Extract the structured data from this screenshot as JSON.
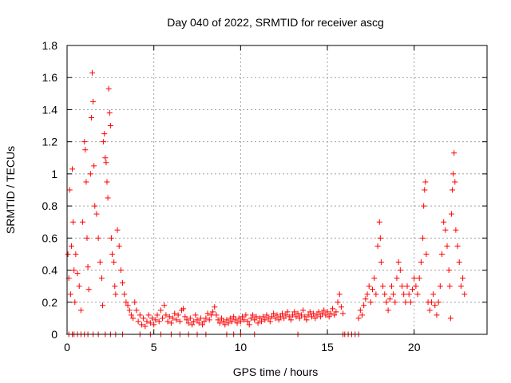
{
  "chart_data": {
    "type": "scatter",
    "title": "Day 040 of 2022, SRMTID for receiver ascg",
    "xlabel": "GPS time / hours",
    "ylabel": "SRMTID / TECUs",
    "xlim": [
      0,
      24.2
    ],
    "ylim": [
      0,
      1.8
    ],
    "xticks": [
      0,
      5,
      10,
      15,
      20
    ],
    "xtick_labels": [
      "0",
      "5",
      "10",
      "15",
      "20"
    ],
    "yticks": [
      0,
      0.2,
      0.4,
      0.6,
      0.8,
      1,
      1.2,
      1.4,
      1.6,
      1.8
    ],
    "ytick_labels": [
      "0",
      "0.2",
      "0.4",
      "0.6",
      "0.8",
      "1",
      "1.2",
      "1.4",
      "1.6",
      "1.8"
    ],
    "grid": true,
    "marker": "plus",
    "color": "#ff0000",
    "series": [
      {
        "name": "SRMTID",
        "points": [
          [
            0.05,
            0.5
          ],
          [
            0.1,
            0.35
          ],
          [
            0.15,
            0.9
          ],
          [
            0.2,
            0.25
          ],
          [
            0.25,
            0.55
          ],
          [
            0.3,
            1.03
          ],
          [
            0.35,
            0.7
          ],
          [
            0.4,
            0.4
          ],
          [
            0.45,
            0.2
          ],
          [
            0.5,
            0.5
          ],
          [
            0.6,
            0.38
          ],
          [
            0.7,
            0.3
          ],
          [
            0.8,
            0.15
          ],
          [
            0.9,
            0.7
          ],
          [
            1.0,
            1.2
          ],
          [
            1.05,
            1.15
          ],
          [
            1.1,
            0.95
          ],
          [
            1.15,
            0.6
          ],
          [
            1.2,
            0.42
          ],
          [
            1.25,
            0.28
          ],
          [
            1.35,
            1.0
          ],
          [
            1.4,
            1.35
          ],
          [
            1.45,
            1.63
          ],
          [
            1.5,
            1.45
          ],
          [
            1.55,
            1.05
          ],
          [
            1.6,
            0.8
          ],
          [
            1.7,
            0.75
          ],
          [
            1.8,
            0.6
          ],
          [
            1.9,
            0.45
          ],
          [
            2.0,
            0.35
          ],
          [
            2.05,
            0.18
          ],
          [
            2.1,
            1.2
          ],
          [
            2.15,
            1.25
          ],
          [
            2.2,
            1.1
          ],
          [
            2.25,
            1.07
          ],
          [
            2.3,
            0.95
          ],
          [
            2.35,
            0.85
          ],
          [
            2.4,
            1.53
          ],
          [
            2.45,
            1.38
          ],
          [
            2.5,
            1.3
          ],
          [
            2.55,
            0.6
          ],
          [
            2.6,
            0.5
          ],
          [
            2.7,
            0.45
          ],
          [
            2.75,
            0.3
          ],
          [
            2.8,
            0.25
          ],
          [
            2.9,
            0.65
          ],
          [
            3.0,
            0.55
          ],
          [
            3.1,
            0.4
          ],
          [
            3.2,
            0.32
          ],
          [
            3.3,
            0.25
          ],
          [
            3.4,
            0.2
          ],
          [
            3.5,
            0.18
          ],
          [
            3.6,
            0.15
          ],
          [
            3.7,
            0.12
          ],
          [
            3.8,
            0.1
          ],
          [
            3.9,
            0.2
          ],
          [
            4.0,
            0.15
          ],
          [
            4.1,
            0.08
          ],
          [
            4.2,
            0.12
          ],
          [
            4.3,
            0.06
          ],
          [
            4.4,
            0.1
          ],
          [
            4.5,
            0.05
          ],
          [
            4.6,
            0.08
          ],
          [
            4.7,
            0.12
          ],
          [
            4.8,
            0.07
          ],
          [
            4.9,
            0.1
          ],
          [
            5.0,
            0.06
          ],
          [
            5.1,
            0.09
          ],
          [
            5.2,
            0.12
          ],
          [
            5.3,
            0.08
          ],
          [
            5.4,
            0.15
          ],
          [
            5.5,
            0.1
          ],
          [
            5.6,
            0.18
          ],
          [
            5.7,
            0.12
          ],
          [
            5.8,
            0.08
          ],
          [
            5.9,
            0.11
          ],
          [
            6.0,
            0.07
          ],
          [
            6.1,
            0.1
          ],
          [
            6.2,
            0.13
          ],
          [
            6.3,
            0.09
          ],
          [
            6.4,
            0.12
          ],
          [
            6.5,
            0.08
          ],
          [
            6.6,
            0.15
          ],
          [
            6.7,
            0.16
          ],
          [
            6.8,
            0.11
          ],
          [
            6.9,
            0.09
          ],
          [
            7.0,
            0.07
          ],
          [
            7.1,
            0.1
          ],
          [
            7.2,
            0.06
          ],
          [
            7.3,
            0.08
          ],
          [
            7.4,
            0.12
          ],
          [
            7.5,
            0.09
          ],
          [
            7.6,
            0.07
          ],
          [
            7.7,
            0.1
          ],
          [
            7.8,
            0.06
          ],
          [
            7.9,
            0.08
          ],
          [
            8.0,
            0.1
          ],
          [
            8.1,
            0.13
          ],
          [
            8.2,
            0.09
          ],
          [
            8.3,
            0.12
          ],
          [
            8.4,
            0.14
          ],
          [
            8.5,
            0.17
          ],
          [
            8.6,
            0.12
          ],
          [
            8.7,
            0.09
          ],
          [
            8.8,
            0.07
          ],
          [
            8.9,
            0.1
          ],
          [
            9.0,
            0.08
          ],
          [
            9.1,
            0.06
          ],
          [
            9.2,
            0.09
          ],
          [
            9.3,
            0.07
          ],
          [
            9.4,
            0.1
          ],
          [
            9.5,
            0.08
          ],
          [
            9.6,
            0.11
          ],
          [
            9.7,
            0.09
          ],
          [
            9.8,
            0.07
          ],
          [
            9.9,
            0.1
          ],
          [
            10.0,
            0.08
          ],
          [
            10.1,
            0.11
          ],
          [
            10.2,
            0.09
          ],
          [
            10.3,
            0.12
          ],
          [
            10.4,
            0.08
          ],
          [
            10.5,
            0.06
          ],
          [
            10.6,
            0.1
          ],
          [
            10.7,
            0.12
          ],
          [
            10.8,
            0.09
          ],
          [
            10.9,
            0.11
          ],
          [
            11.0,
            0.07
          ],
          [
            11.1,
            0.1
          ],
          [
            11.2,
            0.08
          ],
          [
            11.3,
            0.11
          ],
          [
            11.4,
            0.09
          ],
          [
            11.5,
            0.12
          ],
          [
            11.6,
            0.1
          ],
          [
            11.7,
            0.08
          ],
          [
            11.8,
            0.11
          ],
          [
            11.9,
            0.13
          ],
          [
            12.0,
            0.1
          ],
          [
            12.1,
            0.12
          ],
          [
            12.2,
            0.09
          ],
          [
            12.3,
            0.11
          ],
          [
            12.4,
            0.13
          ],
          [
            12.5,
            0.1
          ],
          [
            12.6,
            0.12
          ],
          [
            12.7,
            0.14
          ],
          [
            12.8,
            0.11
          ],
          [
            12.9,
            0.09
          ],
          [
            13.0,
            0.12
          ],
          [
            13.1,
            0.14
          ],
          [
            13.2,
            0.11
          ],
          [
            13.3,
            0.13
          ],
          [
            13.4,
            0.1
          ],
          [
            13.5,
            0.12
          ],
          [
            13.6,
            0.15
          ],
          [
            13.7,
            0.11
          ],
          [
            13.8,
            0.09
          ],
          [
            13.9,
            0.12
          ],
          [
            14.0,
            0.14
          ],
          [
            14.1,
            0.11
          ],
          [
            14.2,
            0.13
          ],
          [
            14.3,
            0.1
          ],
          [
            14.4,
            0.12
          ],
          [
            14.5,
            0.14
          ],
          [
            14.6,
            0.11
          ],
          [
            14.7,
            0.13
          ],
          [
            14.8,
            0.15
          ],
          [
            14.9,
            0.12
          ],
          [
            15.0,
            0.14
          ],
          [
            15.1,
            0.11
          ],
          [
            15.2,
            0.13
          ],
          [
            15.3,
            0.16
          ],
          [
            15.4,
            0.12
          ],
          [
            15.5,
            0.14
          ],
          [
            15.6,
            0.2
          ],
          [
            15.7,
            0.25
          ],
          [
            15.8,
            0.17
          ],
          [
            15.9,
            0.13
          ],
          [
            16.8,
            0.1
          ],
          [
            16.9,
            0.15
          ],
          [
            17.0,
            0.12
          ],
          [
            17.1,
            0.18
          ],
          [
            17.2,
            0.22
          ],
          [
            17.3,
            0.25
          ],
          [
            17.4,
            0.3
          ],
          [
            17.5,
            0.2
          ],
          [
            17.6,
            0.28
          ],
          [
            17.7,
            0.35
          ],
          [
            17.8,
            0.25
          ],
          [
            17.9,
            0.55
          ],
          [
            18.0,
            0.7
          ],
          [
            18.05,
            0.6
          ],
          [
            18.1,
            0.45
          ],
          [
            18.2,
            0.3
          ],
          [
            18.3,
            0.25
          ],
          [
            18.4,
            0.2
          ],
          [
            18.5,
            0.15
          ],
          [
            18.6,
            0.22
          ],
          [
            18.7,
            0.3
          ],
          [
            18.8,
            0.25
          ],
          [
            18.9,
            0.2
          ],
          [
            19.0,
            0.35
          ],
          [
            19.1,
            0.45
          ],
          [
            19.2,
            0.4
          ],
          [
            19.3,
            0.3
          ],
          [
            19.4,
            0.25
          ],
          [
            19.5,
            0.2
          ],
          [
            19.6,
            0.3
          ],
          [
            19.7,
            0.25
          ],
          [
            19.8,
            0.2
          ],
          [
            19.9,
            0.28
          ],
          [
            20.0,
            0.35
          ],
          [
            20.1,
            0.3
          ],
          [
            20.2,
            0.25
          ],
          [
            20.3,
            0.35
          ],
          [
            20.4,
            0.45
          ],
          [
            20.5,
            0.6
          ],
          [
            20.55,
            0.8
          ],
          [
            20.6,
            0.9
          ],
          [
            20.65,
            0.95
          ],
          [
            20.7,
            0.5
          ],
          [
            20.8,
            0.2
          ],
          [
            20.9,
            0.15
          ],
          [
            21.0,
            0.2
          ],
          [
            21.1,
            0.25
          ],
          [
            21.2,
            0.18
          ],
          [
            21.3,
            0.12
          ],
          [
            21.4,
            0.2
          ],
          [
            21.5,
            0.3
          ],
          [
            21.6,
            0.5
          ],
          [
            21.7,
            0.7
          ],
          [
            21.8,
            0.65
          ],
          [
            21.9,
            0.55
          ],
          [
            22.0,
            0.4
          ],
          [
            22.05,
            0.3
          ],
          [
            22.1,
            0.1
          ],
          [
            22.15,
            0.75
          ],
          [
            22.2,
            0.9
          ],
          [
            22.25,
            1.0
          ],
          [
            22.3,
            1.13
          ],
          [
            22.35,
            0.95
          ],
          [
            22.4,
            0.65
          ],
          [
            22.5,
            0.55
          ],
          [
            22.6,
            0.45
          ],
          [
            22.7,
            0.3
          ],
          [
            22.8,
            0.35
          ],
          [
            22.9,
            0.25
          ]
        ],
        "zero_points": [
          0.1,
          0.3,
          0.4,
          0.6,
          0.8,
          1.0,
          1.2,
          1.5,
          1.8,
          2.2,
          2.5,
          2.8,
          3.2,
          4.2,
          4.8,
          5.4,
          6.0,
          6.5,
          7.0,
          7.5,
          8.0,
          9.2,
          9.6,
          10.0,
          10.8,
          13.3,
          15.9,
          16.0,
          16.2,
          16.4,
          16.6,
          16.8
        ]
      }
    ]
  }
}
